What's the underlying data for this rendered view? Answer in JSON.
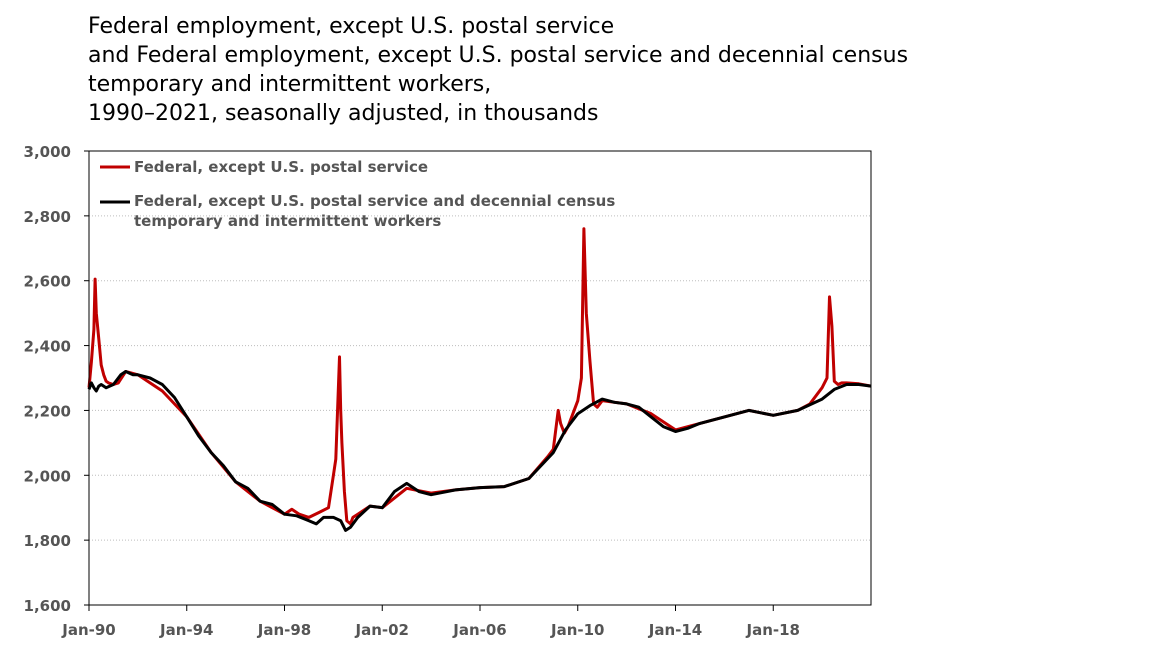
{
  "chart_data": {
    "type": "line",
    "title_lines": [
      "Federal employment, except U.S. postal service",
      "and Federal employment, except U.S. postal service and decennial census",
      "temporary and intermittent workers,",
      "1990–2021, seasonally adjusted, in thousands"
    ],
    "xlabel": "",
    "ylabel": "",
    "xlim": [
      1990.0,
      2022.0
    ],
    "ylim": [
      1600,
      3000
    ],
    "y_ticks": [
      1600,
      1800,
      2000,
      2200,
      2400,
      2600,
      2800,
      3000
    ],
    "y_tick_labels": [
      "1,600",
      "1,800",
      "2,000",
      "2,200",
      "2,400",
      "2,600",
      "2,800",
      "3,000"
    ],
    "x_ticks": [
      1990,
      1994,
      1998,
      2002,
      2006,
      2010,
      2014,
      2018
    ],
    "x_tick_labels": [
      "Jan-90",
      "Jan-94",
      "Jan-98",
      "Jan-02",
      "Jan-06",
      "Jan-10",
      "Jan-14",
      "Jan-18"
    ],
    "grid": "horizontal",
    "legend_position": "top-left",
    "series": [
      {
        "name": "Federal, except U.S. postal service",
        "color": "#c00000",
        "x": [
          1990.0,
          1990.1,
          1990.2,
          1990.25,
          1990.3,
          1990.4,
          1990.5,
          1990.6,
          1990.7,
          1990.8,
          1991.0,
          1991.2,
          1991.5,
          1992.0,
          1993.0,
          1994.0,
          1995.0,
          1996.0,
          1997.0,
          1998.0,
          1998.3,
          1998.6,
          1999.0,
          1999.4,
          1999.8,
          2000.0,
          2000.1,
          2000.25,
          2000.3,
          2000.35,
          2000.45,
          2000.55,
          2000.7,
          2000.8,
          2001.0,
          2001.5,
          2002.0,
          2003.0,
          2004.0,
          2005.0,
          2006.0,
          2007.0,
          2008.0,
          2008.8,
          2009.0,
          2009.2,
          2009.3,
          2009.45,
          2009.6,
          2009.8,
          2010.0,
          2010.15,
          2010.25,
          2010.35,
          2010.5,
          2010.65,
          2010.8,
          2011.0,
          2012.0,
          2013.0,
          2014.0,
          2015.0,
          2016.0,
          2017.0,
          2018.0,
          2019.0,
          2019.5,
          2019.8,
          2020.0,
          2020.2,
          2020.3,
          2020.4,
          2020.5,
          2020.65,
          2020.8,
          2021.0,
          2021.5,
          2022.0
        ],
        "values": [
          2270,
          2350,
          2450,
          2605,
          2500,
          2420,
          2340,
          2310,
          2290,
          2285,
          2280,
          2285,
          2320,
          2310,
          2260,
          2180,
          2070,
          1980,
          1920,
          1880,
          1895,
          1880,
          1870,
          1885,
          1900,
          2000,
          2050,
          2365,
          2200,
          2100,
          1950,
          1860,
          1850,
          1870,
          1880,
          1905,
          1900,
          1960,
          1945,
          1955,
          1962,
          1965,
          1990,
          2060,
          2080,
          2200,
          2160,
          2130,
          2150,
          2190,
          2230,
          2300,
          2760,
          2500,
          2350,
          2220,
          2210,
          2230,
          2220,
          2190,
          2140,
          2160,
          2180,
          2200,
          2185,
          2200,
          2220,
          2250,
          2270,
          2300,
          2550,
          2460,
          2290,
          2280,
          2285,
          2285,
          2282,
          2275
        ]
      },
      {
        "name": "Federal, except U.S. postal service and decennial census temporary and intermittent workers",
        "color": "#000000",
        "x": [
          1990.0,
          1990.1,
          1990.2,
          1990.3,
          1990.4,
          1990.5,
          1990.7,
          1991.0,
          1991.3,
          1991.5,
          1991.8,
          1992.0,
          1992.5,
          1993.0,
          1993.5,
          1994.0,
          1994.5,
          1995.0,
          1995.5,
          1996.0,
          1996.5,
          1997.0,
          1997.5,
          1998.0,
          1998.5,
          1999.0,
          1999.3,
          1999.6,
          2000.0,
          2000.3,
          2000.5,
          2000.7,
          2001.0,
          2001.5,
          2002.0,
          2002.5,
          2003.0,
          2003.5,
          2004.0,
          2005.0,
          2006.0,
          2007.0,
          2008.0,
          2009.0,
          2009.5,
          2010.0,
          2010.5,
          2011.0,
          2011.5,
          2012.0,
          2012.5,
          2013.0,
          2013.5,
          2014.0,
          2014.5,
          2015.0,
          2016.0,
          2017.0,
          2018.0,
          2019.0,
          2020.0,
          2020.5,
          2021.0,
          2021.5,
          2022.0
        ],
        "values": [
          2265,
          2285,
          2270,
          2260,
          2275,
          2280,
          2270,
          2280,
          2310,
          2320,
          2310,
          2310,
          2300,
          2280,
          2240,
          2180,
          2120,
          2070,
          2030,
          1980,
          1960,
          1920,
          1910,
          1880,
          1875,
          1860,
          1850,
          1870,
          1870,
          1860,
          1830,
          1840,
          1870,
          1905,
          1900,
          1950,
          1975,
          1950,
          1940,
          1955,
          1962,
          1965,
          1990,
          2070,
          2140,
          2190,
          2215,
          2235,
          2225,
          2220,
          2210,
          2180,
          2150,
          2135,
          2145,
          2160,
          2180,
          2200,
          2185,
          2200,
          2235,
          2265,
          2280,
          2280,
          2275
        ]
      }
    ]
  }
}
